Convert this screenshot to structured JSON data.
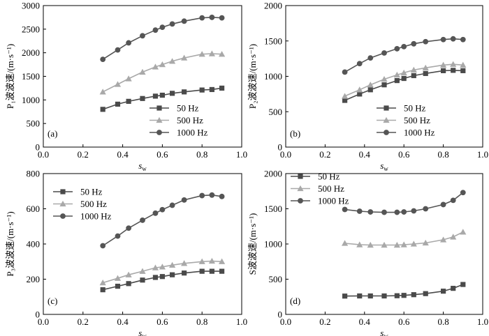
{
  "chart_data": [
    {
      "type": "line",
      "panel_label": "(a)",
      "ylabel": "P₁波波速/(m·s⁻¹)",
      "xlabel": "s_w",
      "xlim": [
        0.0,
        1.0
      ],
      "ylim": [
        0,
        3000
      ],
      "xticks": [
        "0.0",
        "0.2",
        "0.4",
        "0.6",
        "0.8",
        "1.0"
      ],
      "yticks": [
        "0",
        "500",
        "1000",
        "1500",
        "2000",
        "2500",
        "3000"
      ],
      "legend_position": "bottom-right",
      "x": [
        0.3,
        0.375,
        0.43,
        0.5,
        0.565,
        0.6,
        0.65,
        0.71,
        0.8,
        0.85,
        0.9
      ],
      "series": [
        {
          "name": "50 Hz",
          "marker": "square",
          "color": "#4a4a4a",
          "values": [
            800,
            910,
            970,
            1030,
            1080,
            1100,
            1140,
            1170,
            1210,
            1220,
            1250
          ]
        },
        {
          "name": "500 Hz",
          "marker": "triangle",
          "color": "#a9a9a9",
          "values": [
            1170,
            1330,
            1450,
            1590,
            1700,
            1750,
            1820,
            1890,
            1970,
            1980,
            1970
          ]
        },
        {
          "name": "1000 Hz",
          "marker": "circle",
          "color": "#555555",
          "values": [
            1860,
            2060,
            2210,
            2360,
            2480,
            2540,
            2610,
            2670,
            2740,
            2750,
            2740
          ]
        }
      ]
    },
    {
      "type": "line",
      "panel_label": "(b)",
      "ylabel": "P₂波波速/(m·s⁻¹)",
      "xlabel": "s_w",
      "xlim": [
        0.0,
        1.0
      ],
      "ylim": [
        0,
        2000
      ],
      "xticks": [
        "0.0",
        "0.2",
        "0.4",
        "0.6",
        "0.8",
        "1.0"
      ],
      "yticks": [
        "0",
        "500",
        "1000",
        "1500",
        "2000"
      ],
      "legend_position": "bottom-right",
      "x": [
        0.3,
        0.375,
        0.43,
        0.5,
        0.565,
        0.6,
        0.65,
        0.71,
        0.8,
        0.85,
        0.9
      ],
      "series": [
        {
          "name": "50 Hz",
          "marker": "square",
          "color": "#4a4a4a",
          "values": [
            660,
            750,
            810,
            880,
            940,
            970,
            1010,
            1040,
            1080,
            1085,
            1080
          ]
        },
        {
          "name": "500 Hz",
          "marker": "triangle",
          "color": "#a9a9a9",
          "values": [
            720,
            810,
            880,
            960,
            1020,
            1050,
            1090,
            1120,
            1160,
            1170,
            1160
          ]
        },
        {
          "name": "1000 Hz",
          "marker": "circle",
          "color": "#555555",
          "values": [
            1060,
            1180,
            1260,
            1330,
            1390,
            1420,
            1460,
            1490,
            1520,
            1530,
            1520
          ]
        }
      ]
    },
    {
      "type": "line",
      "panel_label": "(c)",
      "ylabel": "P₃波波速/(m·s⁻¹)",
      "xlabel": "s_w",
      "xlim": [
        0.0,
        1.0
      ],
      "ylim": [
        0,
        800
      ],
      "xticks": [
        "0.0",
        "0.2",
        "0.4",
        "0.6",
        "0.8",
        "1.0"
      ],
      "yticks": [
        "0",
        "200",
        "400",
        "600",
        "800"
      ],
      "legend_position": "top-left",
      "x": [
        0.3,
        0.375,
        0.43,
        0.5,
        0.565,
        0.6,
        0.65,
        0.71,
        0.8,
        0.85,
        0.9
      ],
      "series": [
        {
          "name": "50 Hz",
          "marker": "square",
          "color": "#4a4a4a",
          "values": [
            140,
            160,
            175,
            195,
            210,
            215,
            225,
            235,
            245,
            245,
            245
          ]
        },
        {
          "name": "500 Hz",
          "marker": "triangle",
          "color": "#a9a9a9",
          "values": [
            180,
            205,
            225,
            245,
            265,
            270,
            280,
            290,
            300,
            303,
            300
          ]
        },
        {
          "name": "1000 Hz",
          "marker": "circle",
          "color": "#555555",
          "values": [
            390,
            445,
            490,
            535,
            575,
            595,
            620,
            650,
            675,
            678,
            670
          ]
        }
      ]
    },
    {
      "type": "line",
      "panel_label": "(d)",
      "ylabel": "S波波速/(m·s⁻¹)",
      "xlabel": "s_w",
      "xlim": [
        0.0,
        1.0
      ],
      "ylim": [
        0,
        2000
      ],
      "xticks": [
        "0.0",
        "0.2",
        "0.4",
        "0.6",
        "0.8",
        "1.0"
      ],
      "yticks": [
        "0",
        "500",
        "1000",
        "1500",
        "2000"
      ],
      "legend_position": "top-left",
      "x": [
        0.3,
        0.375,
        0.43,
        0.5,
        0.565,
        0.6,
        0.65,
        0.71,
        0.8,
        0.85,
        0.9
      ],
      "series": [
        {
          "name": "50 Hz",
          "marker": "square",
          "color": "#4a4a4a",
          "values": [
            260,
            262,
            262,
            262,
            265,
            270,
            280,
            295,
            330,
            370,
            425
          ]
        },
        {
          "name": "500 Hz",
          "marker": "triangle",
          "color": "#a9a9a9",
          "values": [
            1010,
            990,
            985,
            985,
            985,
            990,
            1000,
            1015,
            1060,
            1100,
            1170
          ]
        },
        {
          "name": "1000 Hz",
          "marker": "circle",
          "color": "#555555",
          "values": [
            1490,
            1465,
            1455,
            1450,
            1450,
            1455,
            1470,
            1500,
            1560,
            1620,
            1730
          ]
        }
      ]
    }
  ]
}
